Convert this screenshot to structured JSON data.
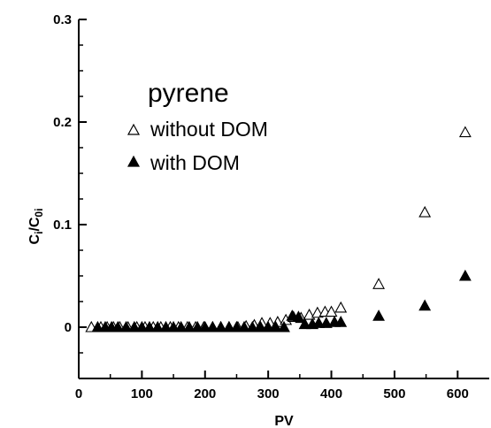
{
  "chart_data": {
    "type": "scatter",
    "title": "",
    "xlabel": "PV",
    "ylabel_main": "C",
    "ylabel_sub1": "i",
    "ylabel_mid": "/C",
    "ylabel_sub2": "0i",
    "xlim": [
      0,
      650
    ],
    "ylim": [
      -0.05,
      0.3
    ],
    "x_ticks": [
      0,
      100,
      200,
      300,
      400,
      500,
      600
    ],
    "x_tick_labels": [
      "0",
      "100",
      "200",
      "300",
      "400",
      "500",
      "600"
    ],
    "y_ticks": [
      0,
      0.1,
      0.2,
      0.3
    ],
    "y_tick_labels": [
      "0",
      "0.1",
      "0.2",
      "0.3"
    ],
    "grid": false,
    "legend": {
      "title": "pyrene",
      "placement": "upper-left"
    },
    "series": [
      {
        "name": "without DOM",
        "marker": "open-triangle",
        "x": [
          20,
          35,
          45,
          55,
          65,
          78,
          92,
          105,
          118,
          130,
          145,
          158,
          172,
          185,
          198,
          212,
          225,
          238,
          252,
          265,
          278,
          290,
          303,
          315,
          328,
          340,
          352,
          365,
          378,
          390,
          400,
          415,
          475,
          548,
          612
        ],
        "y": [
          0,
          0,
          0,
          0,
          0,
          0,
          0,
          0,
          0,
          0,
          0,
          0,
          0,
          0,
          0,
          0,
          0,
          0,
          0,
          0.001,
          0.002,
          0.004,
          0.004,
          0.005,
          0.007,
          0.01,
          0.009,
          0.012,
          0.014,
          0.015,
          0.015,
          0.019,
          0.042,
          0.112,
          0.19
        ]
      },
      {
        "name": "with DOM",
        "marker": "filled-triangle",
        "x": [
          30,
          42,
          52,
          62,
          75,
          88,
          100,
          112,
          125,
          138,
          150,
          162,
          175,
          188,
          200,
          212,
          225,
          238,
          250,
          262,
          275,
          288,
          300,
          312,
          325,
          338,
          348,
          358,
          370,
          380,
          392,
          405,
          415,
          475,
          548,
          612
        ],
        "y": [
          0,
          0,
          0,
          0,
          0,
          0,
          0,
          0,
          0,
          0,
          0,
          0,
          0,
          0,
          0,
          0,
          0,
          0,
          0,
          0,
          0,
          0,
          0,
          0,
          0,
          0.011,
          0.01,
          0.003,
          0.003,
          0.004,
          0.004,
          0.005,
          0.005,
          0.011,
          0.021,
          0.05
        ]
      }
    ]
  }
}
